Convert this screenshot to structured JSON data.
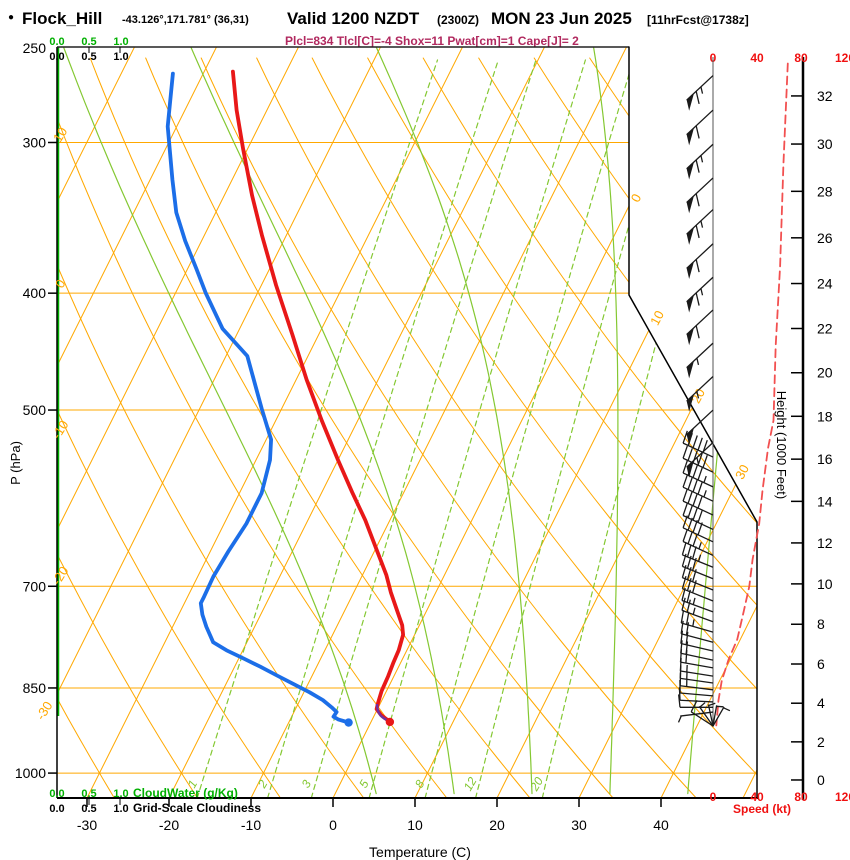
{
  "header": {
    "bullet": "●",
    "station": "Flock_Hill",
    "coords": "-43.126°,171.781° (36,31)",
    "valid": "Valid 1200 NZDT",
    "zulu": "(2300Z)",
    "date": "MON 23 Jun 2025",
    "fcst": "[11hrFcst@1738z]",
    "indices": "Plcl=834 Tlcl[C]=-4 Shox=11 Pwat[cm]=1 Cape[J]= 2"
  },
  "axes": {
    "pressure": {
      "label": "P (hPa)",
      "ticks": [
        250,
        300,
        400,
        500,
        700,
        850,
        1000
      ]
    },
    "temperature": {
      "label": "Temperature (C)",
      "ticks": [
        -30,
        -20,
        -10,
        0,
        10,
        20,
        30,
        40
      ]
    },
    "height": {
      "label": "Height (1000 Feet)",
      "ticks": [
        0,
        2,
        4,
        6,
        8,
        10,
        12,
        14,
        16,
        18,
        20,
        22,
        24,
        26,
        28,
        30,
        32
      ]
    },
    "speed": {
      "label": "Speed (kt)",
      "ticks": [
        0,
        40,
        80,
        120
      ]
    }
  },
  "scales": {
    "cloudwater": {
      "label": "CloudWater (g/Kg)",
      "ticks": [
        "0.0",
        "0.5",
        "1.0"
      ]
    },
    "cloudiness": {
      "label": "Grid-Scale Cloudiness",
      "ticks": [
        "0.0",
        "0.5",
        "1.0"
      ]
    }
  },
  "colors": {
    "grid_orange": "#ffa800",
    "green_light": "#84c832",
    "cloudwater_green": "#00b000",
    "dewpoint_blue": "#1c6ee8",
    "temperature_red": "#e81818",
    "wind_speed_red": "#f25050",
    "indices_magenta": "#b1295f",
    "barb_black": "#1a1a1a"
  },
  "chart_data": {
    "type": "line",
    "subtype": "skew-t-log-p-sounding",
    "pressure_range_hpa": [
      250,
      1040
    ],
    "isobar_lines_hpa": [
      300,
      400,
      500,
      700,
      850,
      1000
    ],
    "isotherm_lines_c": {
      "min": -80,
      "max": 50,
      "step": 10
    },
    "dry_adiabat_lines_c": {
      "min": -30,
      "max": 120,
      "step": 10
    },
    "moist_adiabat_surface_temps_c": [
      5,
      14.5,
      24,
      33.5,
      43
    ],
    "mixing_ratio_lines_gkg": [
      1,
      2,
      3,
      5,
      8,
      12,
      20
    ],
    "dry_adiabat_edge_labels": [
      [
        10,
        137
      ],
      [
        0,
        286
      ],
      [
        -10,
        432
      ],
      [
        -20,
        578
      ],
      [
        -30,
        713
      ]
    ],
    "isotherm_edge_labels": [
      [
        0,
        640,
        200
      ],
      [
        10,
        661,
        320
      ],
      [
        20,
        702,
        398
      ],
      [
        30,
        746,
        474
      ]
    ],
    "temperature_profile": {
      "p": [
        262,
        282,
        304,
        332,
        358,
        394,
        433,
        472,
        510,
        550,
        585,
        617,
        653,
        685,
        708,
        732,
        754,
        768,
        791,
        809,
        831,
        855,
        875,
        885,
        895,
        902,
        907
      ],
      "t": [
        -56.5,
        -53.7,
        -50.5,
        -46.6,
        -43.0,
        -38.2,
        -33.2,
        -28.7,
        -24.4,
        -20.0,
        -16.3,
        -13.0,
        -9.8,
        -7.1,
        -5.5,
        -3.7,
        -2.1,
        -1.4,
        -1.0,
        -0.9,
        -0.7,
        -0.6,
        -0.3,
        -0.1,
        0.8,
        1.7,
        2.3
      ]
    },
    "dewpoint_profile": {
      "p": [
        263,
        291,
        322,
        343,
        362,
        382,
        400,
        428,
        451,
        499,
        529,
        550,
        586,
        621,
        655,
        687,
        714,
        723,
        739,
        756,
        779,
        791,
        803,
        816,
        830,
        843,
        857,
        870,
        882,
        890,
        898,
        903,
        908
      ],
      "t": [
        -63.7,
        -61.1,
        -57.3,
        -54.8,
        -52.0,
        -48.9,
        -46.3,
        -42.1,
        -37.4,
        -32.4,
        -29.4,
        -28.3,
        -27.3,
        -27.3,
        -27.8,
        -28.1,
        -28.0,
        -28.0,
        -27.1,
        -25.9,
        -24.1,
        -22.0,
        -19.5,
        -16.9,
        -14.3,
        -11.9,
        -9.3,
        -7.2,
        -5.7,
        -4.8,
        -4.9,
        -4.1,
        -2.7
      ]
    },
    "surface_temperature_c": 2.3,
    "surface_dewpoint_c": -2.7,
    "wind_speed_profile_kt": [
      [
        258,
        68
      ],
      [
        313,
        64
      ],
      [
        380,
        61
      ],
      [
        442,
        57
      ],
      [
        510,
        55
      ],
      [
        538,
        50
      ],
      [
        583,
        45
      ],
      [
        621,
        42
      ],
      [
        665,
        36
      ],
      [
        700,
        33
      ],
      [
        734,
        28
      ],
      [
        775,
        22
      ],
      [
        806,
        14
      ],
      [
        838,
        8
      ],
      [
        870,
        5
      ],
      [
        913,
        3
      ]
    ],
    "wind_barbs": [
      [
        264,
        137,
        1,
        1,
        1
      ],
      [
        282,
        137,
        1,
        1,
        0
      ],
      [
        301,
        137,
        1,
        1,
        1
      ],
      [
        321,
        137,
        1,
        1,
        0
      ],
      [
        341,
        137,
        1,
        1,
        1
      ],
      [
        364,
        137,
        1,
        1,
        0
      ],
      [
        388,
        137,
        1,
        1,
        1
      ],
      [
        413,
        137,
        1,
        1,
        0
      ],
      [
        440,
        137,
        1,
        0,
        1
      ],
      [
        469,
        137,
        1,
        0,
        1
      ],
      [
        500,
        137,
        1,
        0,
        0
      ],
      [
        532,
        137,
        1,
        0,
        1
      ],
      [
        547,
        205,
        0,
        5,
        0
      ],
      [
        563,
        205,
        0,
        5,
        0
      ],
      [
        579,
        205,
        0,
        4,
        1
      ],
      [
        595,
        205,
        0,
        4,
        1
      ],
      [
        611,
        205,
        0,
        4,
        0
      ],
      [
        628,
        205,
        0,
        4,
        0
      ],
      [
        643,
        205,
        0,
        4,
        0
      ],
      [
        660,
        205,
        0,
        3,
        1
      ],
      [
        675,
        202,
        0,
        3,
        1
      ],
      [
        690,
        202,
        0,
        3,
        0
      ],
      [
        705,
        202,
        0,
        3,
        0
      ],
      [
        720,
        202,
        0,
        3,
        0
      ],
      [
        735,
        200,
        0,
        2,
        1
      ],
      [
        749,
        200,
        0,
        2,
        1
      ],
      [
        764,
        196,
        0,
        2,
        1
      ],
      [
        779,
        195,
        0,
        2,
        0
      ],
      [
        792,
        193,
        0,
        2,
        0
      ],
      [
        806,
        192,
        0,
        2,
        0
      ],
      [
        818,
        190,
        0,
        2,
        0
      ],
      [
        831,
        189,
        0,
        1,
        1
      ],
      [
        842,
        188,
        0,
        1,
        1
      ],
      [
        853,
        187,
        0,
        1,
        1
      ],
      [
        863,
        185,
        0,
        1,
        0
      ],
      [
        873,
        183,
        0,
        1,
        0
      ],
      [
        882,
        180,
        0,
        1,
        0
      ],
      [
        890,
        173,
        0,
        0,
        1
      ]
    ],
    "surface_wind_fan": [
      [
        213,
        26,
        1,
        0
      ],
      [
        235,
        24,
        0,
        1
      ],
      [
        258,
        22,
        0,
        1
      ],
      [
        280,
        21,
        0,
        1
      ],
      [
        300,
        22,
        0,
        1
      ]
    ]
  }
}
